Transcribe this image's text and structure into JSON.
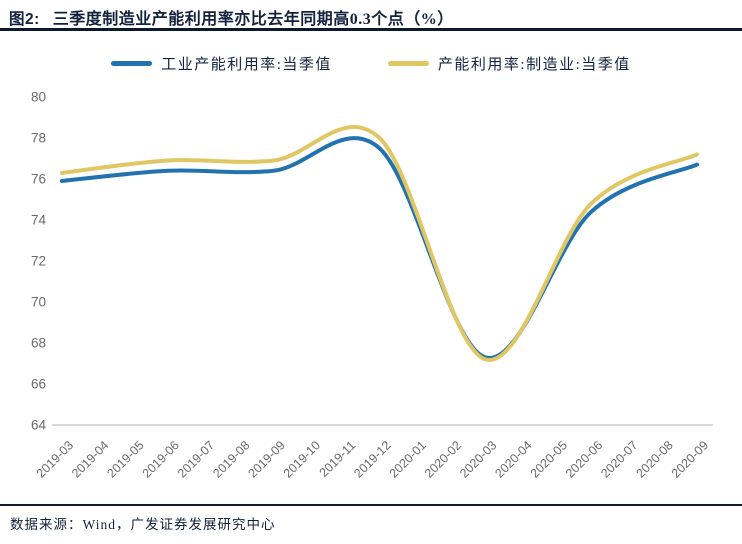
{
  "header": {
    "tag": "图2:",
    "title": "三季度制造业产能利用率亦比去年同期高0.3个点（%）"
  },
  "footer": {
    "source": "数据来源：Wind，广发证券发展研究中心"
  },
  "colors": {
    "navy_text": "#13223C",
    "title_rule": "#0D1A2E",
    "axis_label_gray": "#6A6A6A",
    "axis_line_gray": "#D9D9D9",
    "series_industrial": "#2272B0",
    "series_manufacturing": "#E0C764"
  },
  "chart_data": {
    "type": "line",
    "title": "三季度制造业产能利用率亦比去年同期高0.3个点（%）",
    "xlabel": "",
    "ylabel": "",
    "x": [
      "2019-03",
      "2019-04",
      "2019-05",
      "2019-06",
      "2019-07",
      "2019-08",
      "2019-09",
      "2019-10",
      "2019-11",
      "2019-12",
      "2020-01",
      "2020-02",
      "2020-03",
      "2020-04",
      "2020-05",
      "2020-06",
      "2020-07",
      "2020-08",
      "2020-09"
    ],
    "yticks": [
      64,
      66,
      68,
      70,
      72,
      74,
      76,
      78,
      80
    ],
    "ylim": [
      64,
      80
    ],
    "grid": false,
    "smooth": true,
    "legend_position": "top",
    "series": [
      {
        "name": "工业产能利用率:当季值",
        "color": "#2272B0",
        "x_indices": [
          0,
          3,
          6,
          9,
          12,
          15,
          18
        ],
        "x_labels": [
          "2019-03",
          "2019-06",
          "2019-09",
          "2019-12",
          "2020-03",
          "2020-06",
          "2020-09"
        ],
        "values": [
          75.9,
          76.4,
          76.4,
          77.5,
          67.3,
          74.4,
          76.7
        ]
      },
      {
        "name": "产能利用率:制造业:当季值",
        "color": "#E0C764",
        "x_indices": [
          0,
          3,
          6,
          9,
          12,
          15,
          18
        ],
        "x_labels": [
          "2019-03",
          "2019-06",
          "2019-09",
          "2019-12",
          "2020-03",
          "2020-06",
          "2020-09"
        ],
        "values": [
          76.3,
          76.9,
          76.9,
          78.0,
          67.2,
          74.8,
          77.2
        ]
      }
    ]
  }
}
